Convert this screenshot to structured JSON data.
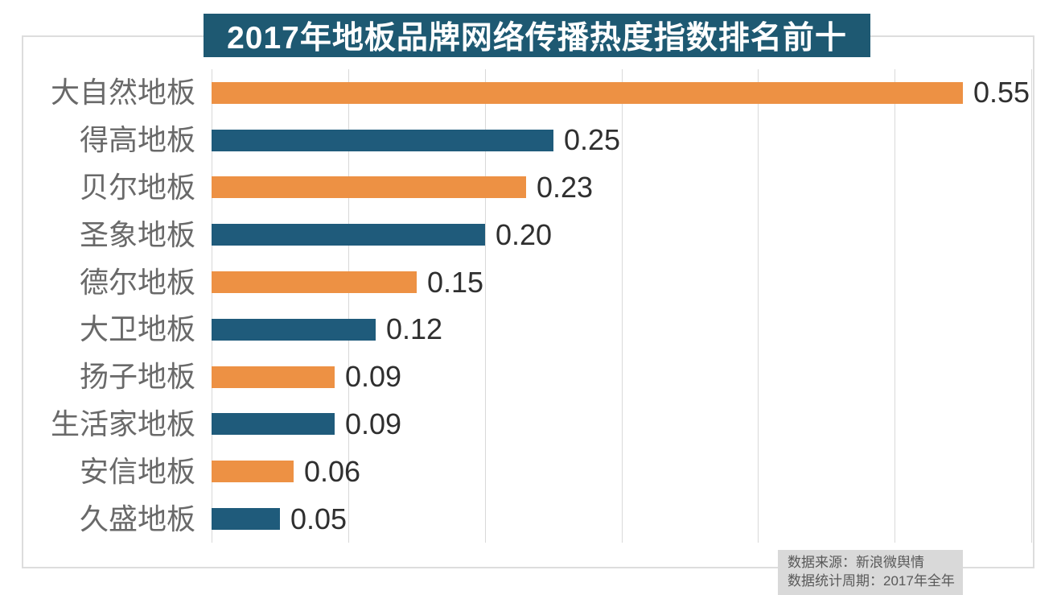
{
  "title": "2017年地板品牌网络传播热度指数排名前十",
  "chart_data": {
    "type": "bar",
    "orientation": "horizontal",
    "title": "2017年地板品牌网络传播热度指数排名前十",
    "categories": [
      "大自然地板",
      "得高地板",
      "贝尔地板",
      "圣象地板",
      "德尔地板",
      "大卫地板",
      "扬子地板",
      "生活家地板",
      "安信地板",
      "久盛地板"
    ],
    "values": [
      0.55,
      0.25,
      0.23,
      0.2,
      0.15,
      0.12,
      0.09,
      0.09,
      0.06,
      0.05
    ],
    "value_labels": [
      "0.55",
      "0.25",
      "0.23",
      "0.20",
      "0.15",
      "0.12",
      "0.09",
      "0.09",
      "0.06",
      "0.05"
    ],
    "xlim": [
      0,
      0.6
    ],
    "grid_interval": 0.1,
    "grid": true,
    "legend": "none",
    "data_labels": "outside-end",
    "bar_color_odd_rows": "#ED9144",
    "bar_color_even_rows": "#1F5B7B"
  },
  "footer": {
    "source": "数据来源：新浪微舆情",
    "period": "数据统计周期：2017年全年"
  },
  "colors": {
    "title_bg": "#1E5972",
    "title_text": "#FFFFFF",
    "bar_orange": "#ED9144",
    "bar_teal": "#1F5B7B",
    "category_text": "#696969",
    "value_text": "#2F2F2F",
    "grid_line": "#D9D9D9",
    "frame_border": "#DDDDDD",
    "footer_bg": "#D9D9D9",
    "footer_text": "#595959"
  }
}
